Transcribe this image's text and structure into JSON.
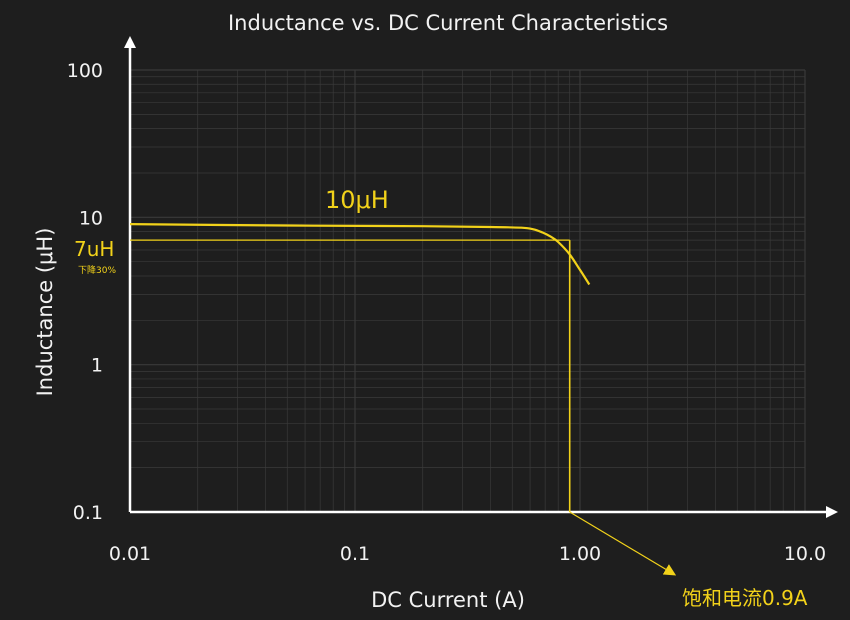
{
  "chart_data": {
    "type": "line",
    "title": "Inductance vs. DC Current Characteristics",
    "xlabel": "DC Current (A)",
    "ylabel": "Inductance (μH)",
    "x_scale": "log",
    "y_scale": "log",
    "xlim": [
      0.01,
      10.0
    ],
    "ylim": [
      0.1,
      100
    ],
    "x_ticks": [
      "0.01",
      "0.1",
      "1.00",
      "10.0"
    ],
    "y_ticks": [
      "0.1",
      "1",
      "10",
      "100"
    ],
    "grid": true,
    "series": [
      {
        "x": [
          0.01,
          0.05,
          0.2,
          0.4,
          0.55,
          0.62,
          0.68,
          0.74,
          0.8,
          0.9,
          1.0,
          1.1
        ],
        "y": [
          9.0,
          8.8,
          8.7,
          8.6,
          8.5,
          8.3,
          7.9,
          7.4,
          6.8,
          5.6,
          4.4,
          3.5
        ]
      }
    ],
    "reference_lines": {
      "level_value": 7,
      "saturation_current": 0.9
    },
    "annotations": {
      "curve_label": "10μH",
      "level_label": "7uH",
      "drop_label": "下降30%",
      "saturation_label": "饱和电流0.9A"
    },
    "colors": {
      "background": "#1e1e1e",
      "axis": "#ffffff",
      "grid": "#3a3a3a",
      "curve": "#f2d21a",
      "text": "#f2f2f2"
    }
  }
}
